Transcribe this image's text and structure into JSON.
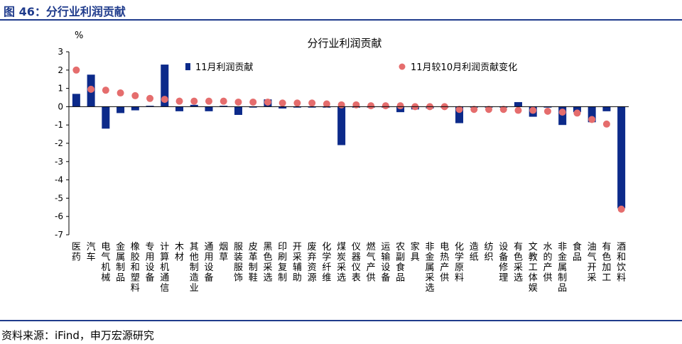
{
  "header": {
    "title": "图 46：分行业利润贡献"
  },
  "source": {
    "text": "资料来源：iFind，申万宏源研究"
  },
  "chart_data": {
    "type": "bar",
    "title": "分行业利润贡献",
    "ylabel": "%",
    "ylim": [
      -7,
      3
    ],
    "yticks": [
      3,
      2,
      1,
      0,
      -1,
      -2,
      -3,
      -4,
      -5,
      -6,
      -7
    ],
    "legend_position": "top",
    "colors": {
      "bar": "#0c2a8a",
      "dot": "#e56d6d",
      "axis": "#000000"
    },
    "categories": [
      "医药",
      "汽车",
      "电气机械",
      "金属制品",
      "橡胶和塑料",
      "专用设备",
      "计算机通信",
      "木材",
      "其他制造业",
      "通用设备",
      "烟草",
      "服装服饰",
      "皮革制鞋",
      "黑色采选",
      "印刷复制",
      "开采辅助",
      "废弃资源",
      "化学纤维",
      "煤炭采选",
      "仪器仪表",
      "燃气产供",
      "运输设备",
      "农副食品",
      "家具",
      "非金属采选",
      "电热产供",
      "化学原料",
      "造纸",
      "纺织",
      "设备修理",
      "有色采选",
      "文教工体娱",
      "水的产供",
      "非金属制品",
      "食品",
      "油气开采",
      "有色加工",
      "酒和饮料"
    ],
    "series": [
      {
        "name": "11月利润贡献",
        "type": "bar",
        "values": [
          0.7,
          1.75,
          -1.2,
          -0.35,
          -0.2,
          0.05,
          2.3,
          -0.25,
          0.1,
          -0.25,
          0.05,
          -0.45,
          -0.05,
          0.4,
          -0.1,
          -0.05,
          -0.05,
          -0.05,
          -2.1,
          -0.05,
          -0.05,
          -0.05,
          -0.3,
          -0.15,
          -0.1,
          -0.05,
          -0.9,
          -0.05,
          -0.05,
          -0.05,
          0.25,
          -0.55,
          -0.05,
          -1.0,
          -0.3,
          -0.85,
          -0.25,
          -5.55
        ]
      },
      {
        "name": "11月较10月利润贡献变化",
        "type": "scatter",
        "values": [
          2.0,
          0.95,
          0.9,
          0.75,
          0.6,
          0.45,
          0.4,
          0.3,
          0.3,
          0.3,
          0.3,
          0.25,
          0.25,
          0.25,
          0.2,
          0.2,
          0.2,
          0.15,
          0.1,
          0.1,
          0.05,
          0.05,
          0.05,
          0.0,
          0.0,
          0.0,
          -0.15,
          -0.15,
          -0.15,
          -0.15,
          -0.2,
          -0.2,
          -0.25,
          -0.3,
          -0.35,
          -0.7,
          -0.95,
          -5.6
        ]
      }
    ]
  }
}
